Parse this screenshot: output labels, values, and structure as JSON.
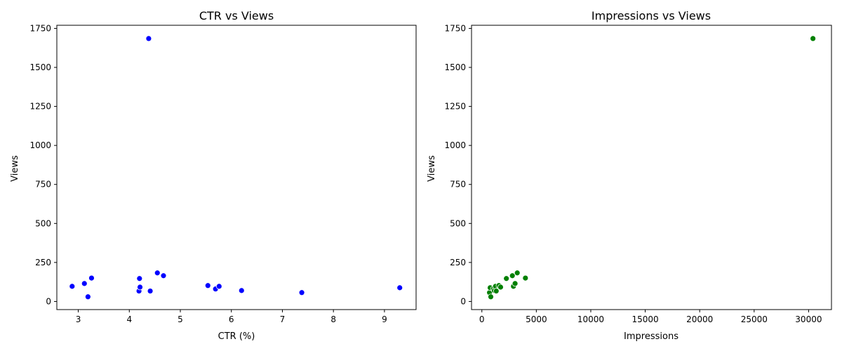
{
  "chart_data": [
    {
      "type": "scatter",
      "title": "CTR vs Views",
      "xlabel": "CTR (%)",
      "ylabel": "Views",
      "xlim": [
        2.58,
        9.62
      ],
      "ylim": [
        -52,
        1770
      ],
      "xticks": [
        3,
        4,
        5,
        6,
        7,
        8,
        9
      ],
      "yticks": [
        0,
        250,
        500,
        750,
        1000,
        1250,
        1500,
        1750
      ],
      "grid": false,
      "color": "#0000ff",
      "points": [
        {
          "x": 2.88,
          "y": 97
        },
        {
          "x": 3.12,
          "y": 115
        },
        {
          "x": 3.19,
          "y": 30
        },
        {
          "x": 3.26,
          "y": 150
        },
        {
          "x": 4.19,
          "y": 67
        },
        {
          "x": 4.2,
          "y": 147
        },
        {
          "x": 4.21,
          "y": 92
        },
        {
          "x": 4.38,
          "y": 1685
        },
        {
          "x": 4.41,
          "y": 67
        },
        {
          "x": 4.55,
          "y": 183
        },
        {
          "x": 4.67,
          "y": 165
        },
        {
          "x": 5.54,
          "y": 102
        },
        {
          "x": 5.69,
          "y": 80
        },
        {
          "x": 5.76,
          "y": 97
        },
        {
          "x": 6.2,
          "y": 70
        },
        {
          "x": 7.38,
          "y": 57
        },
        {
          "x": 9.3,
          "y": 88
        }
      ]
    },
    {
      "type": "scatter",
      "title": "Impressions vs Views",
      "xlabel": "Impressions",
      "ylabel": "Views",
      "xlim": [
        -950,
        32100
      ],
      "ylim": [
        -52,
        1770
      ],
      "xticks": [
        0,
        5000,
        10000,
        15000,
        20000,
        25000,
        30000
      ],
      "yticks": [
        0,
        250,
        500,
        750,
        1000,
        1250,
        1500,
        1750
      ],
      "grid": false,
      "color": "#008000",
      "points": [
        {
          "x": 700,
          "y": 57
        },
        {
          "x": 760,
          "y": 88
        },
        {
          "x": 820,
          "y": 30
        },
        {
          "x": 1050,
          "y": 80
        },
        {
          "x": 1150,
          "y": 70
        },
        {
          "x": 1250,
          "y": 97
        },
        {
          "x": 1320,
          "y": 67
        },
        {
          "x": 1560,
          "y": 102
        },
        {
          "x": 1720,
          "y": 92
        },
        {
          "x": 2250,
          "y": 147
        },
        {
          "x": 2800,
          "y": 165
        },
        {
          "x": 2900,
          "y": 97
        },
        {
          "x": 3050,
          "y": 115
        },
        {
          "x": 3250,
          "y": 183
        },
        {
          "x": 3950,
          "y": 150
        },
        {
          "x": 4000,
          "y": 150
        },
        {
          "x": 30400,
          "y": 1685
        }
      ]
    }
  ]
}
